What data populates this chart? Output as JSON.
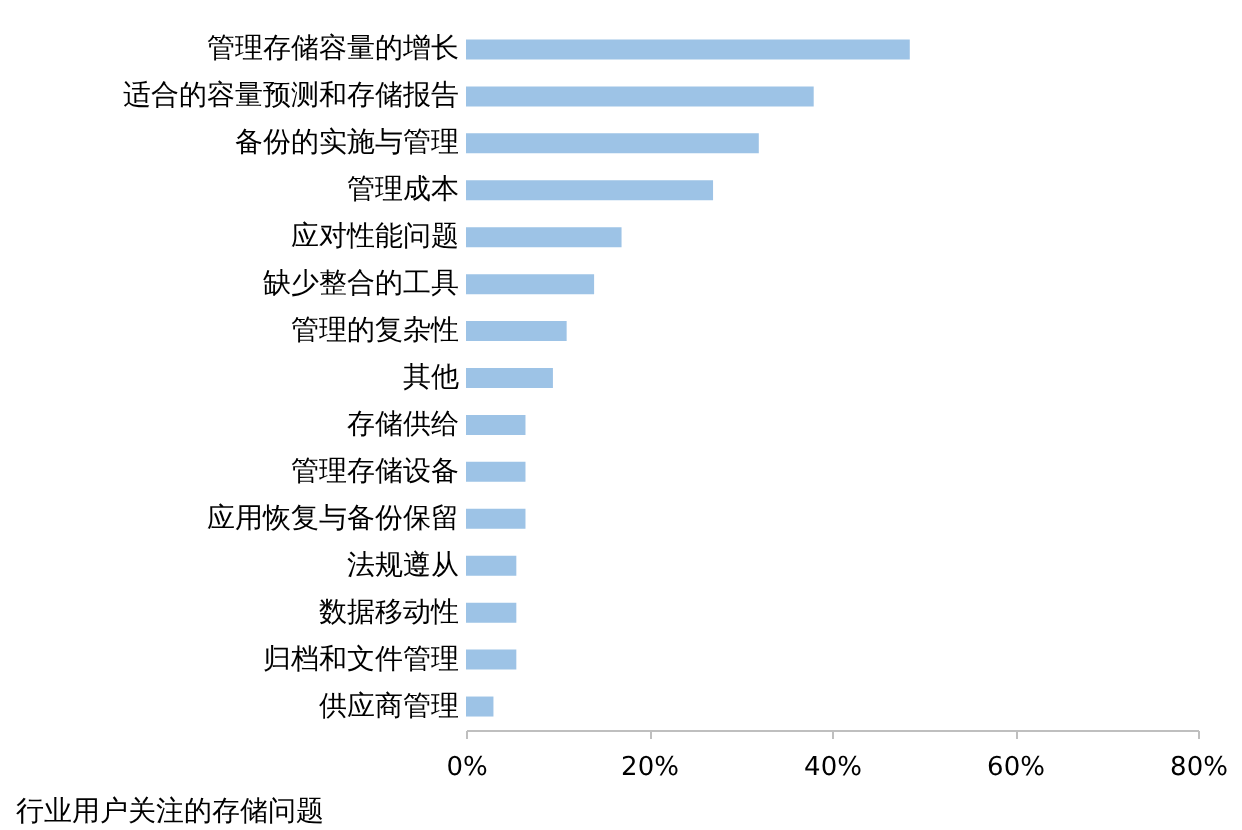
{
  "chart_data": {
    "type": "bar",
    "orientation": "horizontal",
    "categories": [
      "管理存储容量的增长",
      "适合的容量预测和存储报告",
      "备份的实施与管理",
      "管理成本",
      "应对性能问题",
      "缺少整合的工具",
      "管理的复杂性",
      "其他",
      "存储供给",
      "管理存储设备",
      "应用恢复与备份保留",
      "法规遵从",
      "数据移动性",
      "归档和文件管理",
      "供应商管理"
    ],
    "values": [
      48.5,
      38,
      32,
      27,
      17,
      14,
      11,
      9.5,
      6.5,
      6.5,
      6.5,
      5.5,
      5.5,
      5.5,
      3
    ],
    "color": "#9dc3e6",
    "xlim": [
      0,
      80
    ],
    "xticks": [
      {
        "value": 0,
        "label": "0%"
      },
      {
        "value": 20,
        "label": "20%"
      },
      {
        "value": 40,
        "label": "40%"
      },
      {
        "value": 60,
        "label": "60%"
      },
      {
        "value": 80,
        "label": "80%"
      }
    ],
    "annotations": [
      "行业用户关注的存储问题"
    ]
  }
}
